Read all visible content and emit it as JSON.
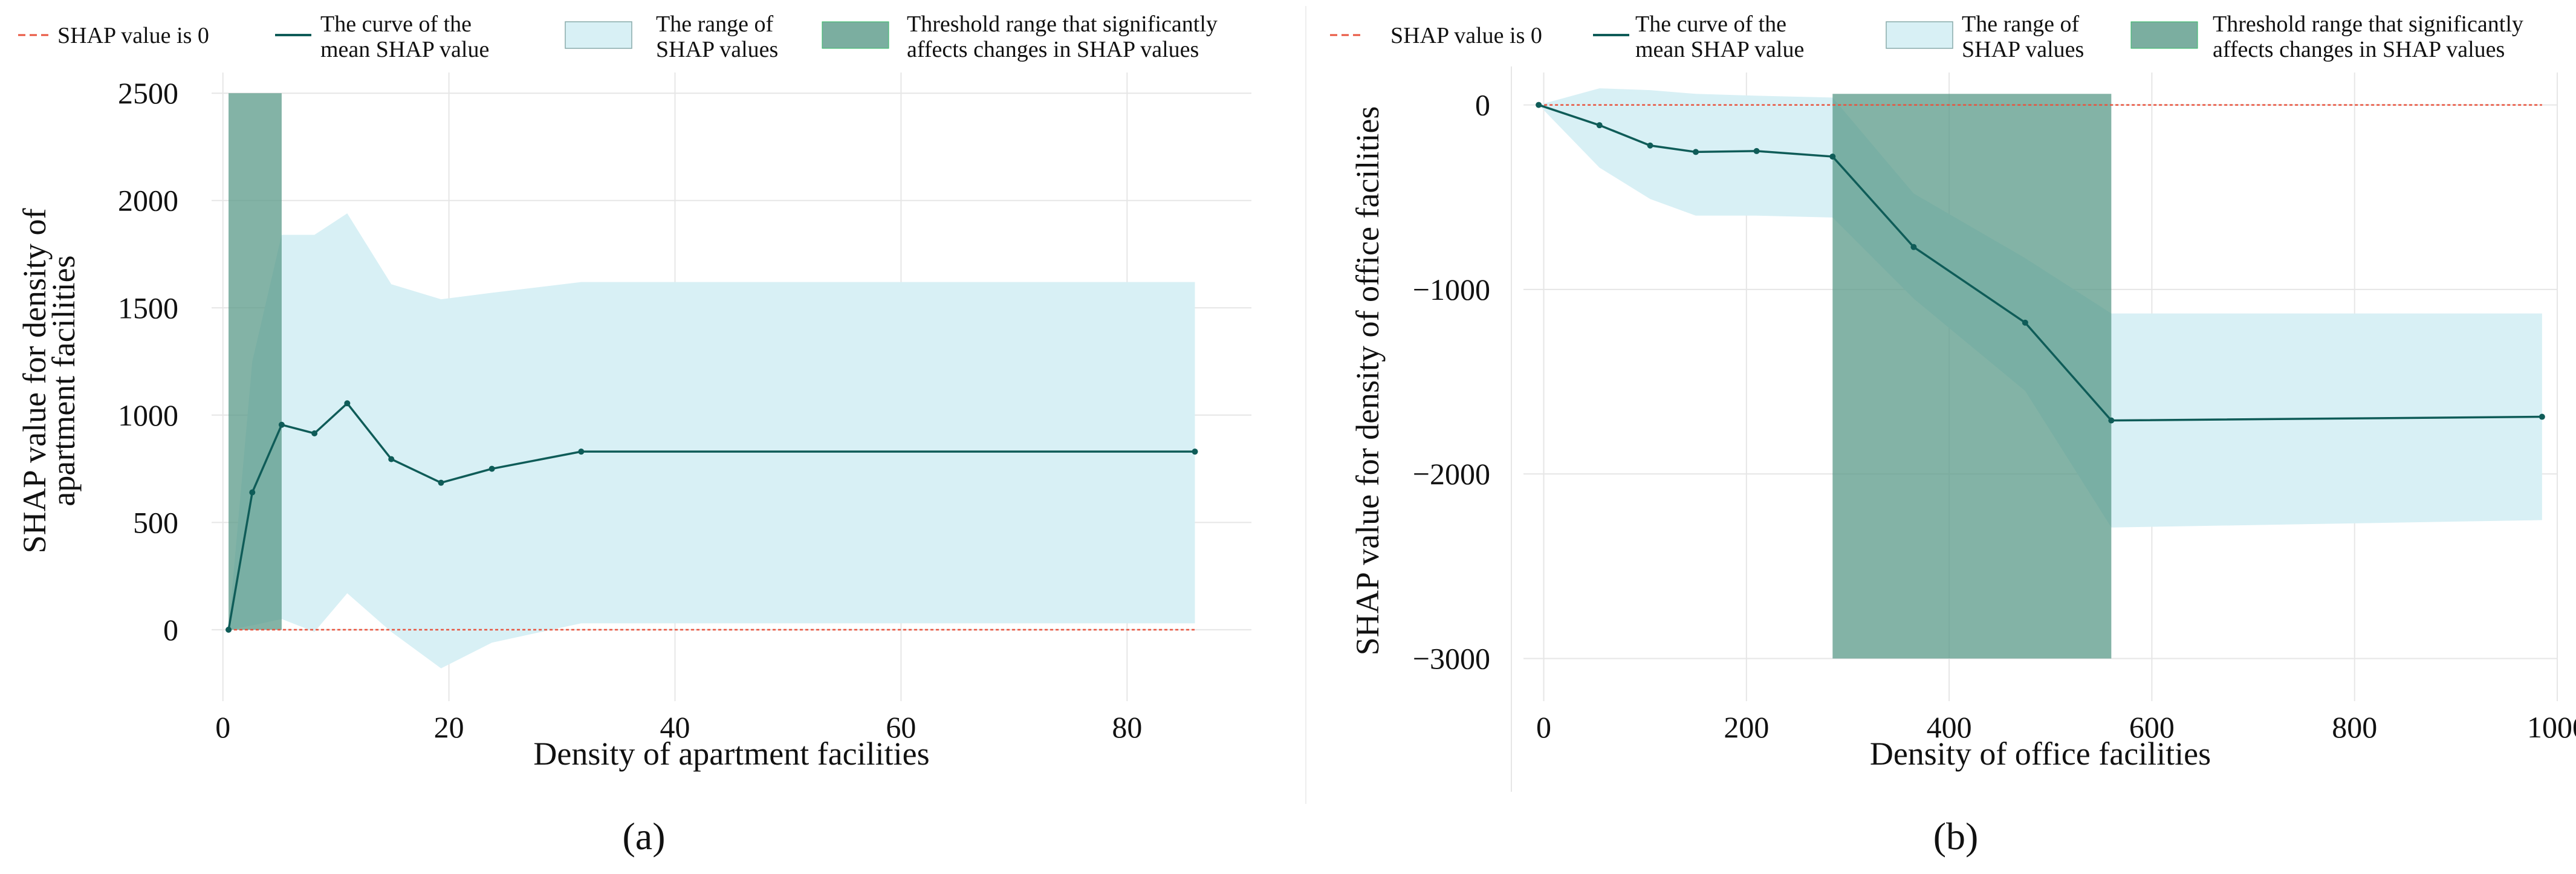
{
  "legend": {
    "zero_line": "SHAP value is 0",
    "mean_curve_line1": "The curve of the",
    "mean_curve_line2": "mean SHAP value",
    "range_line1": "The range of",
    "range_line2": "SHAP values",
    "threshold_line1": "Threshold range that significantly",
    "threshold_line2": "affects changes in SHAP values"
  },
  "colors": {
    "zero_line": "#e8543f",
    "mean_curve": "#0f5c58",
    "range_fill": "#d8f0f5",
    "threshold_fill": "#5a9a88",
    "grid": "#e6e6e6",
    "text": "#111111"
  },
  "chart_data": [
    {
      "type": "line",
      "panel_label": "(a)",
      "xlabel": "Density of apartment facilities",
      "ylabel_line1": "SHAP value for density of",
      "ylabel_line2": "apartment facilities",
      "xlim": [
        -1,
        91
      ],
      "ylim": [
        -220,
        2540
      ],
      "xticks": [
        0,
        20,
        40,
        60,
        80
      ],
      "yticks": [
        0,
        500,
        1000,
        1500,
        2000,
        2500
      ],
      "zero_line": true,
      "mean_curve": {
        "x": [
          0.5,
          2.6,
          5.2,
          8.1,
          11.0,
          14.9,
          19.3,
          23.8,
          31.7,
          86.0
        ],
        "y": [
          0,
          640,
          955,
          915,
          1055,
          795,
          685,
          750,
          830,
          830
        ]
      },
      "range": {
        "x": [
          0.5,
          2.6,
          5.2,
          8.1,
          11.0,
          14.9,
          19.3,
          23.8,
          31.7,
          86.0
        ],
        "upper": [
          0,
          1250,
          1840,
          1840,
          1940,
          1610,
          1540,
          1570,
          1620,
          1620
        ],
        "lower": [
          0,
          20,
          50,
          -10,
          170,
          -10,
          -180,
          -60,
          30,
          30
        ]
      },
      "threshold": {
        "x0": 0.5,
        "x1": 5.2,
        "y0": 0,
        "y1": 2500
      }
    },
    {
      "type": "line",
      "panel_label": "(b)",
      "xlabel": "Density of office facilities",
      "ylabel_line1": "SHAP value for density of office facilities",
      "ylabel_line2": "",
      "xlim": [
        -20,
        1000
      ],
      "ylim": [
        -3100,
        110
      ],
      "xticks": [
        0,
        200,
        400,
        600,
        800,
        1000
      ],
      "yticks": [
        0,
        -1000,
        -2000,
        -3000
      ],
      "zero_line": true,
      "mean_curve": {
        "x": [
          -5,
          55,
          105,
          150,
          210,
          285,
          365,
          475,
          560,
          985
        ],
        "y": [
          0,
          -110,
          -220,
          -255,
          -250,
          -280,
          -770,
          -1180,
          -1710,
          -1690
        ]
      },
      "range": {
        "x": [
          -5,
          55,
          105,
          150,
          210,
          285,
          365,
          475,
          560,
          985
        ],
        "upper": [
          0,
          90,
          80,
          60,
          50,
          40,
          -480,
          -830,
          -1130,
          -1130
        ],
        "lower": [
          0,
          -340,
          -510,
          -600,
          -600,
          -610,
          -1050,
          -1550,
          -2290,
          -2250
        ]
      },
      "threshold": {
        "x0": 285,
        "x1": 560,
        "y0": -3000,
        "y1": 60
      }
    }
  ]
}
